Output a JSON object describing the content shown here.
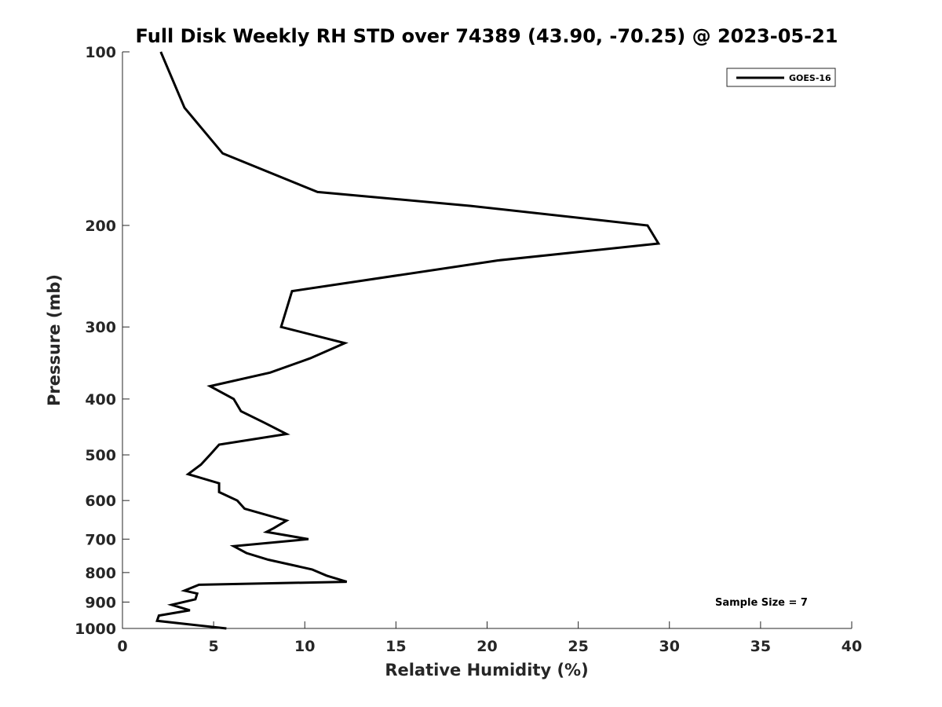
{
  "chart_data": {
    "type": "line",
    "title": "Full Disk Weekly RH STD over 74389 (43.90, -70.25) @ 2023-05-21",
    "xlabel": "Relative Humidity (%)",
    "ylabel": "Pressure (mb)",
    "xlim": [
      0,
      40
    ],
    "ylim": [
      100,
      1000
    ],
    "yscale": "log",
    "yreversed": true,
    "xticks": [
      0,
      5,
      10,
      15,
      20,
      25,
      30,
      35,
      40
    ],
    "yticks": [
      100,
      200,
      300,
      400,
      500,
      600,
      700,
      800,
      900,
      1000
    ],
    "grid": false,
    "legend_position": "top-right",
    "series": [
      {
        "name": "GOES-16",
        "color": "#000000",
        "points": [
          [
            2.1,
            100
          ],
          [
            3.4,
            125
          ],
          [
            5.5,
            150
          ],
          [
            10.7,
            175
          ],
          [
            19.1,
            185
          ],
          [
            28.8,
            200
          ],
          [
            29.4,
            215
          ],
          [
            20.6,
            230
          ],
          [
            9.3,
            260
          ],
          [
            8.7,
            300
          ],
          [
            12.2,
            320
          ],
          [
            10.3,
            340
          ],
          [
            8.1,
            360
          ],
          [
            4.8,
            380
          ],
          [
            6.1,
            400
          ],
          [
            6.5,
            420
          ],
          [
            7.8,
            440
          ],
          [
            9.0,
            460
          ],
          [
            5.3,
            480
          ],
          [
            4.8,
            500
          ],
          [
            4.3,
            520
          ],
          [
            3.6,
            540
          ],
          [
            5.3,
            560
          ],
          [
            5.3,
            580
          ],
          [
            6.3,
            600
          ],
          [
            6.7,
            620
          ],
          [
            9.0,
            650
          ],
          [
            8.3,
            670
          ],
          [
            7.9,
            680
          ],
          [
            10.2,
            700
          ],
          [
            6.1,
            720
          ],
          [
            6.8,
            740
          ],
          [
            8.0,
            760
          ],
          [
            10.4,
            790
          ],
          [
            11.2,
            810
          ],
          [
            12.3,
            830
          ],
          [
            4.2,
            840
          ],
          [
            3.4,
            860
          ],
          [
            4.1,
            870
          ],
          [
            4.0,
            890
          ],
          [
            2.7,
            910
          ],
          [
            3.7,
            930
          ],
          [
            2.0,
            950
          ],
          [
            1.9,
            970
          ],
          [
            5.7,
            1000
          ]
        ]
      }
    ],
    "annotations": [
      "Sample Size = 7"
    ]
  }
}
